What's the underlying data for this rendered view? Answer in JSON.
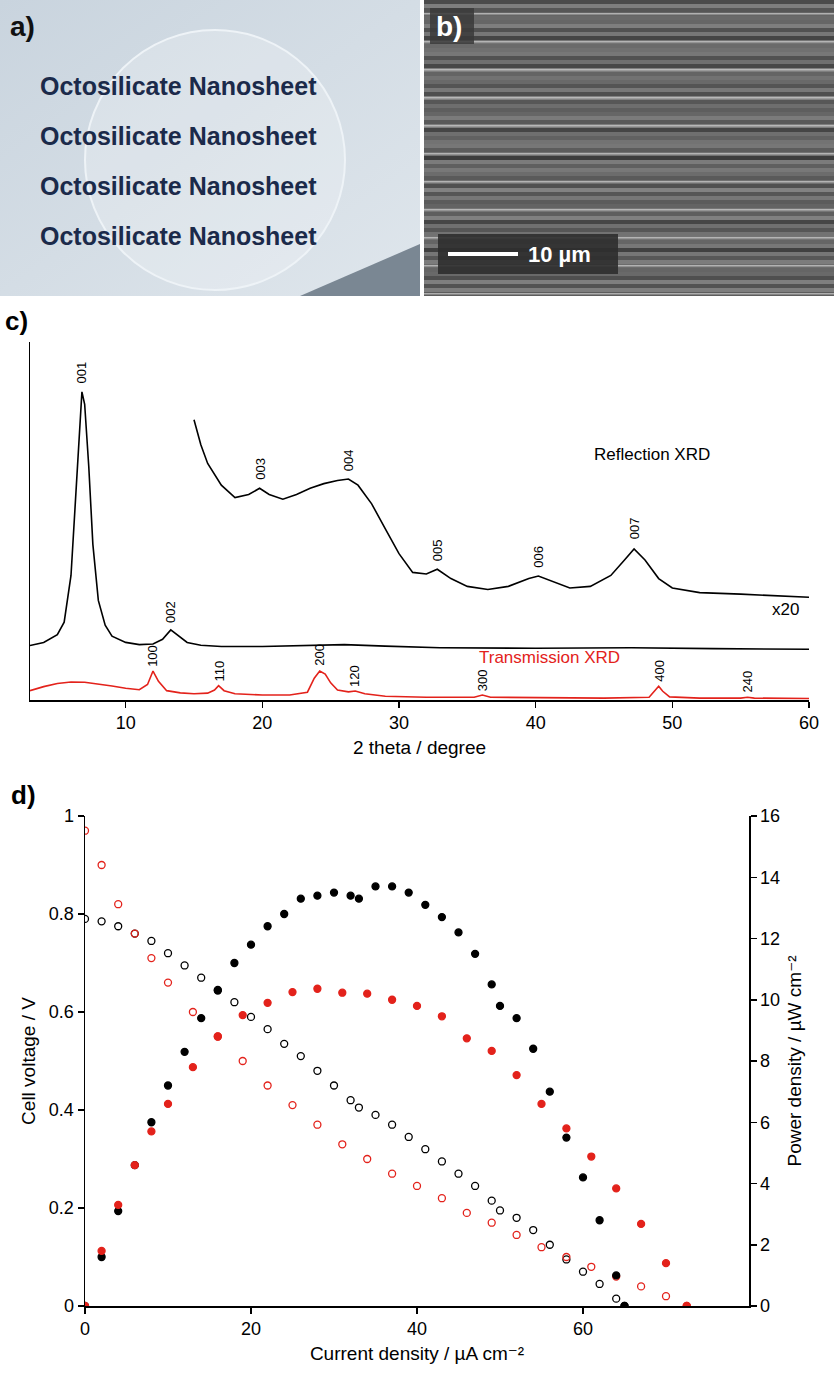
{
  "panels": {
    "a": {
      "panel_label": "a)",
      "lines": [
        "Octosilicate Nanosheet",
        "Octosilicate Nanosheet",
        "Octosilicate Nanosheet",
        "Octosilicate Nanosheet"
      ]
    },
    "b": {
      "panel_label": "b)",
      "scale_bar": "10 µm"
    }
  },
  "chart_data": [
    {
      "type": "line",
      "panel_label": "c)",
      "x_label": "2 theta / degree",
      "xlim": [
        3,
        60
      ],
      "xticks": [
        10,
        20,
        30,
        40,
        50,
        60
      ],
      "ylim": [
        0,
        115
      ],
      "yticks": [],
      "tick_labels": "x",
      "grid": false,
      "series": [
        {
          "color": "#000000",
          "x": [
            3,
            4,
            5,
            5.5,
            6,
            6.3,
            6.6,
            6.8,
            7.0,
            7.3,
            7.6,
            8,
            8.5,
            9,
            10,
            11,
            12,
            12.7,
            13.3,
            13.9,
            14.5,
            15.5,
            17,
            20,
            23,
            26,
            29,
            33,
            40,
            47,
            53,
            60
          ],
          "values": [
            17.5,
            18.5,
            21,
            25,
            40,
            62,
            86,
            99,
            95,
            75,
            50,
            32,
            24,
            20.5,
            18.5,
            17.8,
            18,
            19.5,
            22.5,
            20.5,
            18.5,
            17.6,
            17.2,
            17.2,
            17.5,
            17.8,
            17.3,
            16.8,
            16.6,
            16.8,
            16.5,
            16.3
          ]
        },
        {
          "color": "#000000",
          "x": [
            15,
            15.5,
            16,
            17,
            18,
            19,
            19.8,
            20.5,
            21.5,
            22.5,
            23.5,
            24.5,
            25.5,
            26.3,
            27,
            28,
            29,
            30,
            31,
            32,
            32.8,
            33.8,
            35,
            36.5,
            38,
            39.5,
            40.2,
            41,
            42.5,
            44,
            45.5,
            46.5,
            47.2,
            48,
            49,
            50,
            52,
            55,
            58,
            60
          ],
          "values": [
            90,
            82,
            76,
            69,
            65,
            66,
            68,
            66,
            64.5,
            66,
            68,
            69.5,
            70.5,
            71,
            69,
            63,
            55,
            47,
            41,
            40.5,
            42,
            39,
            36.5,
            35.5,
            36.5,
            39,
            39.8,
            38.5,
            36,
            36.5,
            40,
            45,
            48.5,
            45,
            39,
            36,
            34.5,
            34,
            33.5,
            33
          ]
        },
        {
          "color": "#e3221b",
          "x": [
            3,
            4,
            5,
            6,
            7,
            8,
            9,
            10,
            11,
            11.6,
            12,
            12.4,
            13,
            14,
            15,
            16,
            16.5,
            16.8,
            17.2,
            18,
            20,
            22,
            23.3,
            23.8,
            24.2,
            24.6,
            25,
            25.5,
            26.3,
            26.8,
            27.5,
            29,
            32,
            35.5,
            36.1,
            36.7,
            40,
            45,
            48.3,
            48.7,
            49,
            49.3,
            49.8,
            52,
            55,
            55.5,
            56,
            60
          ],
          "values": [
            3,
            4.3,
            5.3,
            5.8,
            5.7,
            5.2,
            4.5,
            3.8,
            3.3,
            5,
            9.3,
            6,
            3,
            2.3,
            2,
            2.2,
            3.2,
            4.6,
            3,
            2,
            1.6,
            1.6,
            2.5,
            7,
            9.3,
            8.3,
            5.5,
            3.2,
            2.6,
            2.9,
            2,
            1.2,
            0.9,
            0.9,
            1.6,
            0.9,
            0.7,
            0.6,
            0.9,
            2.8,
            4.4,
            2.8,
            1,
            0.6,
            0.6,
            0.9,
            0.6,
            0.5
          ]
        }
      ],
      "peak_labels": [
        {
          "text": "001",
          "x": 6.8,
          "y": 101
        },
        {
          "text": "002",
          "x": 13.3,
          "y": 24
        },
        {
          "text": "003",
          "x": 19.8,
          "y": 70
        },
        {
          "text": "004",
          "x": 26.3,
          "y": 73
        },
        {
          "text": "005",
          "x": 32.8,
          "y": 44
        },
        {
          "text": "006",
          "x": 40.2,
          "y": 42
        },
        {
          "text": "007",
          "x": 47.2,
          "y": 51
        },
        {
          "text": "100",
          "x": 12,
          "y": 10
        },
        {
          "text": "110",
          "x": 16.8,
          "y": 5.3
        },
        {
          "text": "200",
          "x": 24.2,
          "y": 10.3
        },
        {
          "text": "120",
          "x": 26.8,
          "y": 3.6
        },
        {
          "text": "300",
          "x": 36.1,
          "y": 2.3
        },
        {
          "text": "400",
          "x": 49,
          "y": 5.1
        },
        {
          "text": "240",
          "x": 55.5,
          "y": 1.6
        }
      ],
      "annotations": [
        {
          "text": "Reflection XRD",
          "x": 48.5,
          "y": 79,
          "color": "#000000"
        },
        {
          "text": "x20",
          "x": 58.3,
          "y": 29,
          "color": "#000000"
        },
        {
          "text": "Transmission XRD",
          "x": 41,
          "y": 13.5,
          "color": "#e3221b"
        }
      ]
    },
    {
      "type": "scatter",
      "panel_label": "d)",
      "x_label": "Current density / µA cm⁻²",
      "y_label": "Cell voltage / V",
      "y2_label": "Power density / µW cm⁻²",
      "xlim": [
        0,
        80
      ],
      "xticks": [
        0,
        20,
        40,
        60
      ],
      "ylim": [
        0,
        1
      ],
      "yticks": [
        0,
        0.2,
        0.4,
        0.6,
        0.8,
        1
      ],
      "y2lim": [
        0,
        16
      ],
      "y2ticks": [
        0,
        2,
        4,
        6,
        8,
        10,
        12,
        14,
        16
      ],
      "grid": false,
      "series": [
        {
          "color": "#000000",
          "marker": "open circle",
          "x": [
            0,
            2,
            4,
            6,
            8,
            10,
            12,
            14,
            16,
            18,
            20,
            22,
            24,
            26,
            28,
            30,
            32,
            33,
            35,
            37,
            39,
            41,
            43,
            45,
            47,
            49,
            50,
            52,
            54,
            56,
            58,
            60,
            62,
            64,
            65
          ],
          "values": [
            0.79,
            0.785,
            0.775,
            0.76,
            0.745,
            0.72,
            0.695,
            0.67,
            0.645,
            0.62,
            0.59,
            0.565,
            0.535,
            0.51,
            0.48,
            0.45,
            0.42,
            0.405,
            0.39,
            0.37,
            0.345,
            0.32,
            0.295,
            0.27,
            0.245,
            0.215,
            0.195,
            0.18,
            0.155,
            0.125,
            0.095,
            0.07,
            0.045,
            0.015,
            0
          ]
        },
        {
          "color": "#000000",
          "marker": "circle",
          "axis": "y2",
          "x": [
            0,
            2,
            4,
            6,
            8,
            10,
            12,
            14,
            16,
            18,
            20,
            22,
            24,
            26,
            28,
            30,
            32,
            33,
            35,
            37,
            39,
            41,
            43,
            45,
            47,
            49,
            50,
            52,
            54,
            56,
            58,
            60,
            62,
            64,
            65
          ],
          "values": [
            0,
            1.6,
            3.1,
            4.6,
            6.0,
            7.2,
            8.3,
            9.4,
            10.3,
            11.2,
            11.8,
            12.4,
            12.8,
            13.3,
            13.4,
            13.5,
            13.4,
            13.3,
            13.7,
            13.7,
            13.5,
            13.1,
            12.7,
            12.2,
            11.5,
            10.5,
            9.8,
            9.4,
            8.4,
            7.0,
            5.5,
            4.2,
            2.8,
            1.0,
            0
          ]
        },
        {
          "color": "#e3221b",
          "marker": "open circle",
          "x": [
            0,
            2,
            4,
            6,
            8,
            10,
            13,
            16,
            19,
            22,
            25,
            28,
            31,
            34,
            37,
            40,
            43,
            46,
            49,
            52,
            55,
            58,
            61,
            64,
            67,
            70,
            72.5
          ],
          "values": [
            0.97,
            0.9,
            0.82,
            0.76,
            0.71,
            0.66,
            0.6,
            0.55,
            0.5,
            0.45,
            0.41,
            0.37,
            0.33,
            0.3,
            0.27,
            0.245,
            0.22,
            0.19,
            0.17,
            0.145,
            0.12,
            0.1,
            0.08,
            0.06,
            0.04,
            0.02,
            0
          ]
        },
        {
          "color": "#e3221b",
          "marker": "circle",
          "axis": "y2",
          "x": [
            0,
            2,
            4,
            6,
            8,
            10,
            13,
            16,
            19,
            22,
            25,
            28,
            31,
            34,
            37,
            40,
            43,
            46,
            49,
            52,
            55,
            58,
            61,
            64,
            67,
            70,
            72.5
          ],
          "values": [
            0,
            1.8,
            3.3,
            4.6,
            5.7,
            6.6,
            7.8,
            8.8,
            9.5,
            9.9,
            10.25,
            10.36,
            10.23,
            10.2,
            10.0,
            9.8,
            9.46,
            8.74,
            8.33,
            7.54,
            6.6,
            5.8,
            4.88,
            3.84,
            2.68,
            1.4,
            0
          ]
        }
      ]
    }
  ]
}
